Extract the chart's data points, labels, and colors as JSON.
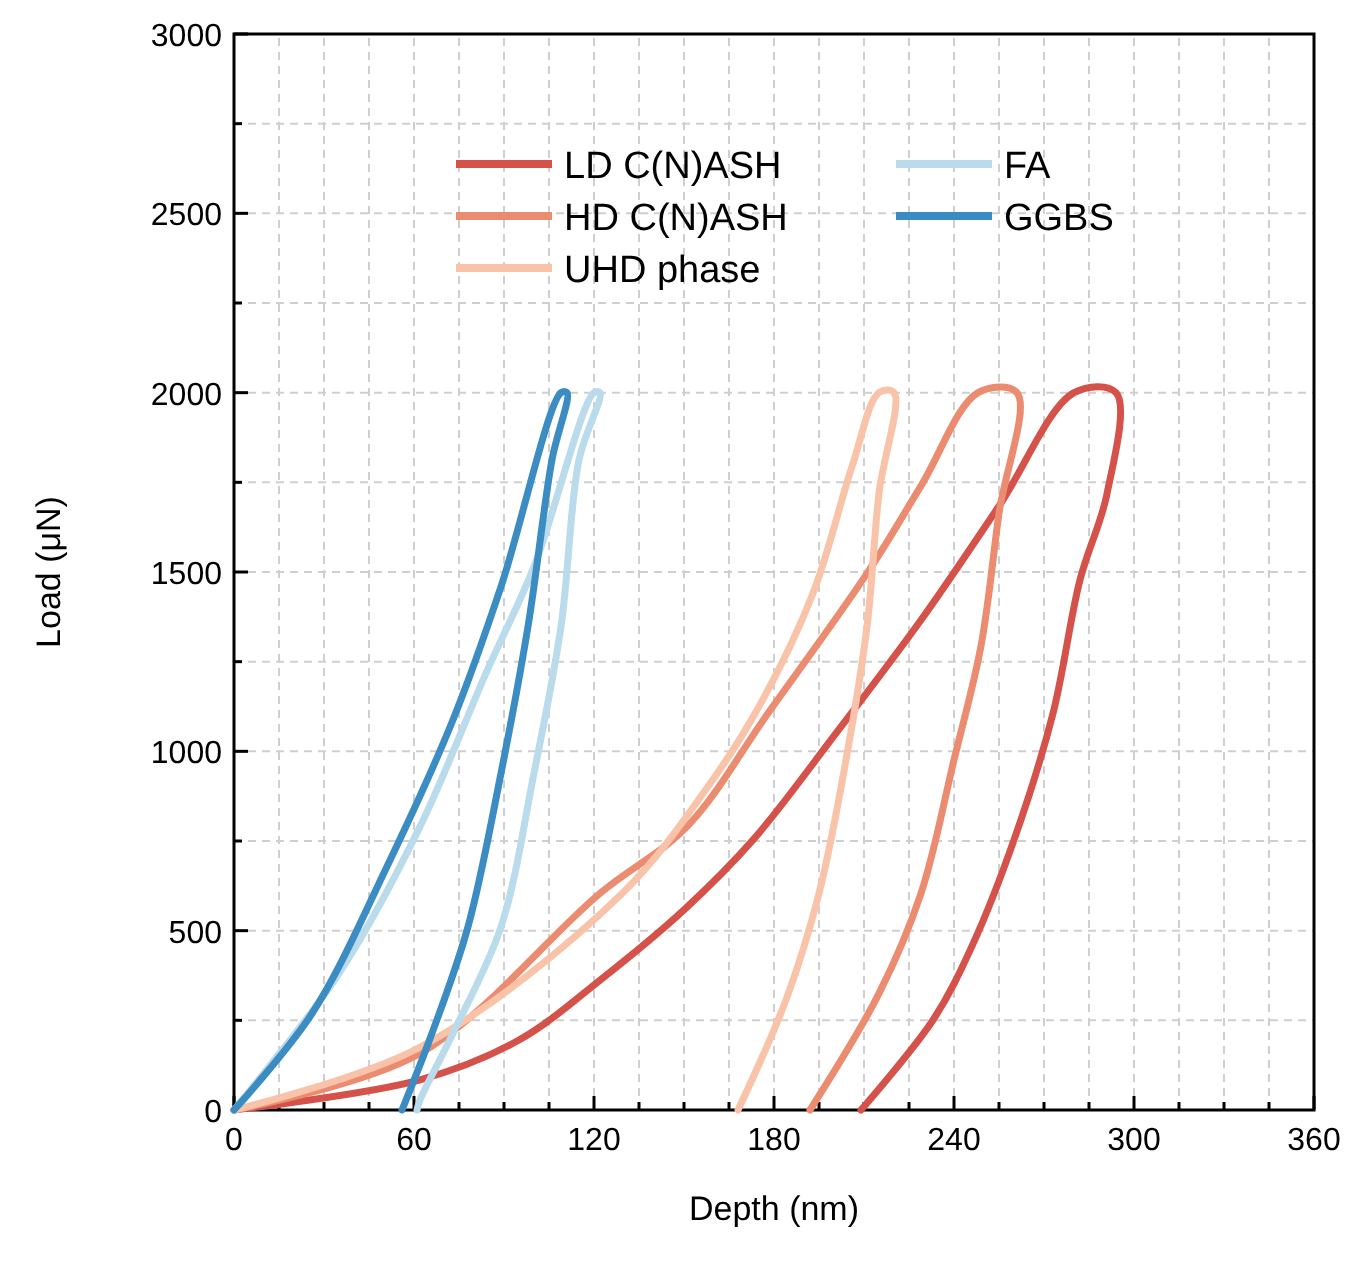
{
  "chart_data": {
    "type": "line",
    "xlabel": "Depth (nm)",
    "ylabel": "Load (μN)",
    "xlim": [
      0,
      360
    ],
    "ylim": [
      0,
      3000
    ],
    "xticks": [
      0,
      {
        "value": 15,
        "label": null
      },
      {
        "value": 30,
        "label": null
      },
      {
        "value": 45,
        "label": null
      },
      60,
      {
        "value": 75,
        "label": null
      },
      {
        "value": 90,
        "label": null
      },
      {
        "value": 105,
        "label": null
      },
      120,
      {
        "value": 135,
        "label": null
      },
      {
        "value": 150,
        "label": null
      },
      {
        "value": 165,
        "label": null
      },
      180,
      {
        "value": 195,
        "label": null
      },
      {
        "value": 210,
        "label": null
      },
      {
        "value": 225,
        "label": null
      },
      240,
      {
        "value": 255,
        "label": null
      },
      {
        "value": 270,
        "label": null
      },
      {
        "value": 285,
        "label": null
      },
      300,
      {
        "value": 315,
        "label": null
      },
      {
        "value": 330,
        "label": null
      },
      {
        "value": 345,
        "label": null
      },
      360
    ],
    "yticks": [
      0,
      {
        "value": 250,
        "label": null
      },
      500,
      {
        "value": 750,
        "label": null
      },
      1000,
      {
        "value": 1250,
        "label": null
      },
      1500,
      {
        "value": 1750,
        "label": null
      },
      2000,
      {
        "value": 2250,
        "label": null
      },
      2500,
      {
        "value": 2750,
        "label": null
      },
      3000
    ],
    "grid": true,
    "legend": "top",
    "line_style": "solid",
    "series": [
      {
        "name": "LD C(N)ASH",
        "color": "#d4524a",
        "x": [
          0,
          62,
          95,
          122,
          150,
          173,
          200,
          229,
          255,
          280,
          294,
          291,
          282,
          273,
          260,
          246,
          233,
          209
        ],
        "values": [
          0,
          84,
          195,
          362,
          558,
          753,
          1043,
          1366,
          1684,
          2000,
          2000,
          1718,
          1478,
          1106,
          753,
          457,
          251,
          0
        ]
      },
      {
        "name": "HD C(N)ASH",
        "color": "#eb8b6f",
        "x": [
          0,
          62,
          122,
          151,
          178,
          211,
          229,
          248,
          261,
          255,
          249,
          240,
          229,
          215,
          192
        ],
        "values": [
          0,
          158,
          604,
          790,
          1106,
          1496,
          1740,
          2000,
          2000,
          1664,
          1294,
          976,
          604,
          325,
          0
        ]
      },
      {
        "name": "UHD phase",
        "color": "#f9c3a9",
        "x": [
          0,
          62,
          129,
          158,
          175,
          193,
          206,
          215,
          220,
          215,
          211,
          204,
          195,
          184,
          168
        ],
        "values": [
          0,
          175,
          601,
          902,
          1125,
          1441,
          1794,
          2000,
          2000,
          1720,
          1348,
          976,
          604,
          307,
          0
        ]
      },
      {
        "name": "FA",
        "color": "#b9dbeb",
        "x": [
          0,
          35,
          62,
          84,
          100,
          120,
          122,
          115,
          109,
          100,
          89,
          73,
          62,
          61
        ],
        "values": [
          0,
          381,
          790,
          1218,
          1515,
          2000,
          2000,
          1813,
          1348,
          939,
          511,
          214,
          28,
          0
        ]
      },
      {
        "name": "GGBS",
        "color": "#3b8cc3",
        "x": [
          0,
          26,
          51,
          73,
          89,
          109,
          111,
          106,
          98,
          89,
          78,
          66,
          56
        ],
        "values": [
          0,
          269,
          679,
          1088,
          1459,
          2000,
          2000,
          1813,
          1348,
          939,
          511,
          214,
          0
        ]
      }
    ]
  }
}
